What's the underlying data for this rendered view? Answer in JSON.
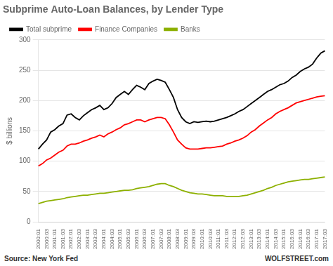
{
  "chart_data": {
    "type": "line",
    "title": "Subprime Auto-Loan Balances, by Lender Type",
    "y_label": "$ billions",
    "annotations": [
      "Source: New York Fed",
      "WOLFSTREET.com"
    ],
    "categories": [
      "2000:01",
      null,
      "2000:03",
      null,
      "2001:01",
      null,
      "2001:03",
      null,
      "2002:01",
      null,
      "2002:03",
      null,
      "2003:01",
      null,
      "2003:03",
      null,
      "2004:01",
      null,
      "2004:03",
      null,
      "2005:01",
      null,
      "2005:03",
      null,
      "2006:01",
      null,
      "2006:03",
      null,
      "2007:01",
      null,
      "2007:03",
      null,
      "2008:01",
      null,
      "2008:03",
      null,
      "2009:01",
      null,
      "2009:03",
      null,
      "2010:01",
      null,
      "2010:03",
      null,
      "2011:01",
      null,
      "2011:03",
      null,
      "2012:01",
      null,
      "2012:03",
      null,
      "2013:01",
      null,
      "2013:03",
      null,
      "2014:01",
      null,
      "2014:03",
      null,
      "2015:01",
      null,
      "2015:03",
      null,
      "2016:01",
      null,
      "2016:03",
      null,
      "2017:01",
      null,
      "2017:03"
    ],
    "series": [
      {
        "name": "Total subprime",
        "color": "#000000",
        "values": [
          120,
          128,
          135,
          148,
          152,
          158,
          162,
          176,
          178,
          172,
          168,
          175,
          180,
          185,
          188,
          192,
          185,
          188,
          195,
          205,
          210,
          215,
          210,
          218,
          225,
          222,
          218,
          228,
          232,
          235,
          233,
          230,
          218,
          205,
          185,
          172,
          165,
          162,
          165,
          164,
          165,
          166,
          165,
          166,
          168,
          170,
          172,
          175,
          178,
          182,
          185,
          190,
          195,
          200,
          205,
          210,
          215,
          218,
          222,
          226,
          228,
          232,
          238,
          242,
          248,
          252,
          255,
          260,
          270,
          278,
          282
        ]
      },
      {
        "name": "Finance Companies",
        "color": "#ff0000",
        "values": [
          92,
          96,
          102,
          105,
          110,
          115,
          118,
          125,
          128,
          128,
          130,
          133,
          135,
          138,
          140,
          143,
          140,
          145,
          148,
          152,
          155,
          160,
          162,
          165,
          168,
          168,
          165,
          168,
          170,
          172,
          172,
          170,
          160,
          148,
          135,
          128,
          122,
          120,
          120,
          120,
          121,
          122,
          122,
          123,
          124,
          125,
          128,
          130,
          133,
          135,
          138,
          142,
          148,
          152,
          158,
          163,
          168,
          172,
          178,
          182,
          185,
          188,
          192,
          196,
          198,
          200,
          202,
          204,
          206,
          207,
          208
        ]
      },
      {
        "name": "Banks",
        "color": "#8db000",
        "values": [
          30,
          32,
          34,
          35,
          36,
          37,
          38,
          40,
          41,
          42,
          43,
          44,
          44,
          45,
          46,
          47,
          47,
          48,
          49,
          50,
          51,
          52,
          52,
          53,
          55,
          56,
          57,
          58,
          60,
          62,
          63,
          63,
          60,
          58,
          55,
          52,
          50,
          48,
          47,
          46,
          46,
          45,
          44,
          43,
          43,
          43,
          42,
          42,
          42,
          42,
          43,
          44,
          46,
          48,
          50,
          52,
          55,
          57,
          60,
          62,
          64,
          66,
          67,
          68,
          69,
          70,
          70,
          71,
          72,
          73,
          74
        ]
      }
    ],
    "ylim": [
      0,
      300
    ],
    "yticks": [
      0,
      50,
      100,
      150,
      200,
      250,
      300
    ],
    "grid": true,
    "legend": "top"
  }
}
